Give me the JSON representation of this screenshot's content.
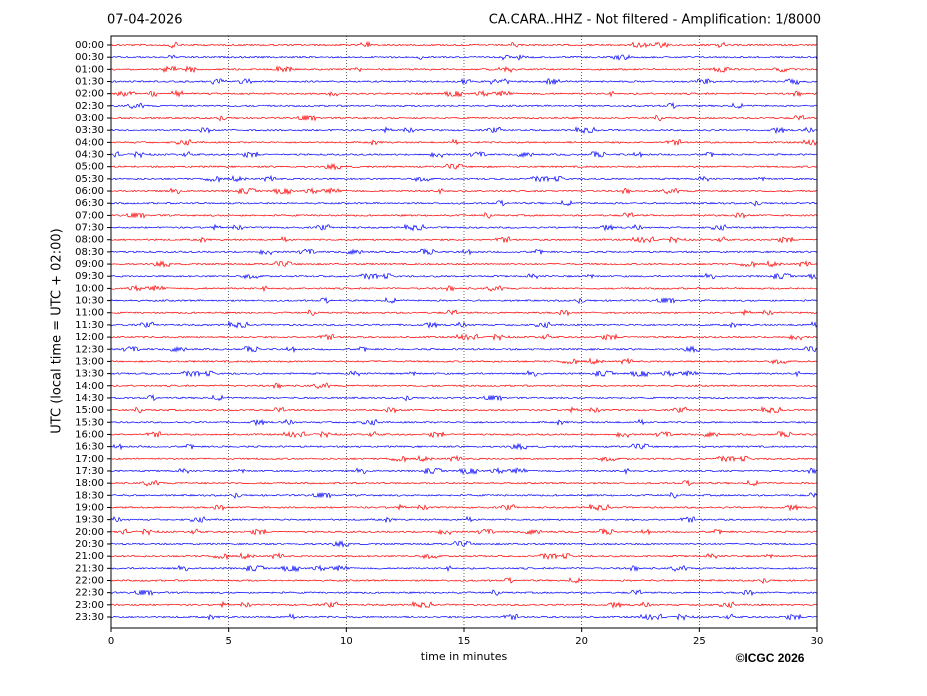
{
  "chart_data": {
    "type": "helicorder",
    "date": "07-04-2026",
    "title": "CA.CARA..HHZ - Not filtered - Amplification: 1/8000",
    "ylabel": "UTC (local time = UTC + 02:00)",
    "xlabel": "time in minutes",
    "credit": "©ICGC 2026",
    "categories": [
      "00:00",
      "00:30",
      "01:00",
      "01:30",
      "02:00",
      "02:30",
      "03:00",
      "03:30",
      "04:00",
      "04:30",
      "05:00",
      "05:30",
      "06:00",
      "06:30",
      "07:00",
      "07:30",
      "08:00",
      "08:30",
      "09:00",
      "09:30",
      "10:00",
      "10:30",
      "11:00",
      "11:30",
      "12:00",
      "12:30",
      "13:00",
      "13:30",
      "14:00",
      "14:30",
      "15:00",
      "15:30",
      "16:00",
      "16:30",
      "17:00",
      "17:30",
      "18:00",
      "18:30",
      "19:00",
      "19:30",
      "20:00",
      "20:30",
      "21:00",
      "21:30",
      "22:00",
      "22:30",
      "23:00",
      "23:30"
    ],
    "colors": [
      "#ff0000",
      "#0000ff"
    ],
    "xlim": [
      0,
      30
    ],
    "xticks": [
      0,
      5,
      10,
      15,
      20,
      25,
      30
    ],
    "grid": true
  }
}
